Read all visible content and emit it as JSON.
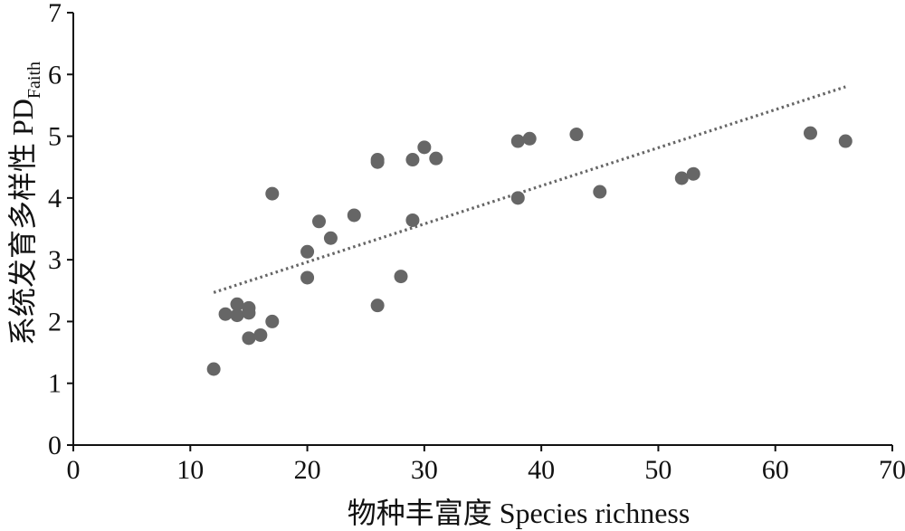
{
  "chart_data": {
    "type": "scatter",
    "xlabel": "物种丰富度 Species richness",
    "ylabel": "系统发育多样性 PD",
    "ylabel_subscript": "Faith",
    "xlim": [
      0,
      70
    ],
    "ylim": [
      0,
      7
    ],
    "xticks": [
      "0",
      "10",
      "20",
      "30",
      "40",
      "50",
      "60",
      "70"
    ],
    "yticks": [
      "0",
      "1",
      "2",
      "3",
      "4",
      "5",
      "6",
      "7"
    ],
    "grid": false,
    "legend": "none",
    "point_color": "#666666",
    "trendline": {
      "style": "dotted",
      "color": "#666666",
      "x": [
        12,
        66
      ],
      "y": [
        2.47,
        5.8
      ]
    },
    "points": [
      {
        "x": 12,
        "y": 1.23
      },
      {
        "x": 13,
        "y": 2.12
      },
      {
        "x": 14,
        "y": 2.28
      },
      {
        "x": 14,
        "y": 2.1
      },
      {
        "x": 15,
        "y": 2.22
      },
      {
        "x": 15,
        "y": 2.14
      },
      {
        "x": 15,
        "y": 1.73
      },
      {
        "x": 16,
        "y": 1.78
      },
      {
        "x": 17,
        "y": 2.0
      },
      {
        "x": 17,
        "y": 4.07
      },
      {
        "x": 20,
        "y": 3.13
      },
      {
        "x": 20,
        "y": 2.71
      },
      {
        "x": 21,
        "y": 3.62
      },
      {
        "x": 22,
        "y": 3.35
      },
      {
        "x": 24,
        "y": 3.72
      },
      {
        "x": 26,
        "y": 4.62
      },
      {
        "x": 26,
        "y": 4.58
      },
      {
        "x": 26,
        "y": 2.26
      },
      {
        "x": 28,
        "y": 2.73
      },
      {
        "x": 29,
        "y": 4.62
      },
      {
        "x": 29,
        "y": 3.64
      },
      {
        "x": 30,
        "y": 4.82
      },
      {
        "x": 31,
        "y": 4.64
      },
      {
        "x": 38,
        "y": 4.92
      },
      {
        "x": 38,
        "y": 4.0
      },
      {
        "x": 39,
        "y": 4.96
      },
      {
        "x": 43,
        "y": 5.03
      },
      {
        "x": 45,
        "y": 4.1
      },
      {
        "x": 52,
        "y": 4.32
      },
      {
        "x": 53,
        "y": 4.39
      },
      {
        "x": 63,
        "y": 5.05
      },
      {
        "x": 66,
        "y": 4.92
      }
    ]
  }
}
